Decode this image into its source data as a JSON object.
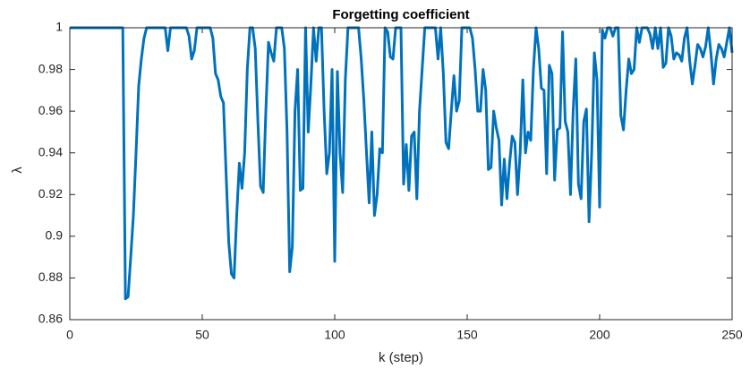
{
  "chart_data": {
    "type": "line",
    "title": "Forgetting coefficient",
    "x_label": "k (step)",
    "y_label": "λ",
    "color": "#0072BD",
    "x": [
      0,
      1,
      2,
      3,
      4,
      5,
      6,
      7,
      8,
      9,
      10,
      11,
      12,
      13,
      14,
      15,
      16,
      17,
      18,
      19,
      20,
      21,
      22,
      23,
      24,
      25,
      26,
      27,
      28,
      29,
      30,
      31,
      32,
      33,
      34,
      35,
      36,
      37,
      38,
      39,
      40,
      41,
      42,
      43,
      44,
      45,
      46,
      47,
      48,
      49,
      50,
      51,
      52,
      53,
      54,
      55,
      56,
      57,
      58,
      59,
      60,
      61,
      62,
      63,
      64,
      65,
      66,
      67,
      68,
      69,
      70,
      71,
      72,
      73,
      74,
      75,
      76,
      77,
      78,
      79,
      80,
      81,
      82,
      83,
      84,
      85,
      86,
      87,
      88,
      89,
      90,
      91,
      92,
      93,
      94,
      95,
      96,
      97,
      98,
      99,
      100,
      101,
      102,
      103,
      104,
      105,
      106,
      107,
      108,
      109,
      110,
      111,
      112,
      113,
      114,
      115,
      116,
      117,
      118,
      119,
      120,
      121,
      122,
      123,
      124,
      125,
      126,
      127,
      128,
      129,
      130,
      131,
      132,
      133,
      134,
      135,
      136,
      137,
      138,
      139,
      140,
      141,
      142,
      143,
      144,
      145,
      146,
      147,
      148,
      149,
      150,
      151,
      152,
      153,
      154,
      155,
      156,
      157,
      158,
      159,
      160,
      161,
      162,
      163,
      164,
      165,
      166,
      167,
      168,
      169,
      170,
      171,
      172,
      173,
      174,
      175,
      176,
      177,
      178,
      179,
      180,
      181,
      182,
      183,
      184,
      185,
      186,
      187,
      188,
      189,
      190,
      191,
      192,
      193,
      194,
      195,
      196,
      197,
      198,
      199,
      200,
      201,
      202,
      203,
      204,
      205,
      206,
      207,
      208,
      209,
      210,
      211,
      212,
      213,
      214,
      215,
      216,
      217,
      218,
      219,
      220,
      221,
      222,
      223,
      224,
      225,
      226,
      227,
      228,
      229,
      230,
      231,
      232,
      233,
      234,
      235,
      236,
      237,
      238,
      239,
      240,
      241,
      242,
      243,
      244,
      245,
      246,
      247,
      248,
      249,
      250
    ],
    "values": [
      1,
      1,
      1,
      1,
      1,
      1,
      1,
      1,
      1,
      1,
      1,
      1,
      1,
      1,
      1,
      1,
      1,
      1,
      1,
      1,
      1,
      0.87,
      0.871,
      0.89,
      0.91,
      0.94,
      0.972,
      0.985,
      0.995,
      1,
      1,
      1,
      1,
      1,
      1,
      1,
      1,
      0.989,
      1,
      1,
      1,
      1,
      1,
      1,
      1,
      0.996,
      0.985,
      0.989,
      1,
      1,
      1,
      1,
      1,
      1,
      0.995,
      0.978,
      0.975,
      0.967,
      0.964,
      0.93,
      0.897,
      0.882,
      0.88,
      0.91,
      0.935,
      0.923,
      0.94,
      0.98,
      1,
      1,
      0.99,
      0.955,
      0.924,
      0.921,
      0.96,
      0.993,
      0.988,
      0.984,
      1,
      1,
      1,
      0.99,
      0.95,
      0.883,
      0.895,
      0.96,
      0.98,
      0.922,
      0.923,
      1,
      0.95,
      0.973,
      1,
      0.984,
      1,
      1,
      0.96,
      0.93,
      0.94,
      0.98,
      0.888,
      0.979,
      0.94,
      0.921,
      0.975,
      1,
      1,
      1,
      1,
      1,
      0.985,
      0.965,
      0.94,
      0.916,
      0.95,
      0.91,
      0.92,
      0.942,
      0.94,
      1,
      0.998,
      0.986,
      0.985,
      1,
      1,
      1,
      0.925,
      0.944,
      0.922,
      0.948,
      0.95,
      0.918,
      0.96,
      0.98,
      1,
      1,
      1,
      1,
      1,
      0.985,
      1,
      0.978,
      0.945,
      0.942,
      0.96,
      0.977,
      0.96,
      0.965,
      1,
      1,
      1,
      1,
      0.995,
      0.98,
      0.96,
      0.96,
      0.98,
      0.97,
      0.932,
      0.933,
      0.96,
      0.952,
      0.946,
      0.915,
      0.937,
      0.918,
      0.935,
      0.948,
      0.945,
      0.92,
      0.94,
      0.975,
      0.94,
      0.95,
      0.946,
      0.98,
      1,
      0.99,
      0.971,
      0.97,
      0.93,
      0.982,
      0.978,
      0.927,
      0.951,
      0.952,
      0.998,
      0.955,
      0.95,
      0.92,
      0.96,
      0.985,
      0.925,
      0.918,
      0.955,
      0.961,
      0.907,
      0.94,
      0.988,
      0.975,
      0.914,
      0.999,
      0.995,
      1,
      1,
      0.996,
      1,
      1,
      0.958,
      0.951,
      0.97,
      0.985,
      0.978,
      0.98,
      1,
      0.993,
      1,
      1,
      1,
      0.997,
      0.99,
      1,
      0.99,
      1,
      0.981,
      0.983,
      1,
      0.996,
      0.985,
      0.988,
      0.987,
      0.984,
      0.995,
      1,
      0.984,
      0.973,
      0.982,
      0.992,
      0.99,
      0.986,
      0.991,
      1,
      0.988,
      0.973,
      0.985,
      0.992,
      0.99,
      0.986,
      0.993,
      1,
      0.988
    ],
    "xlim": [
      0,
      250
    ],
    "xticks": [
      0,
      50,
      100,
      150,
      200,
      250
    ],
    "ylim": [
      0.86,
      1
    ],
    "yticks": [
      0.86,
      0.88,
      0.9,
      0.92,
      0.94,
      0.96,
      0.98,
      1
    ]
  }
}
